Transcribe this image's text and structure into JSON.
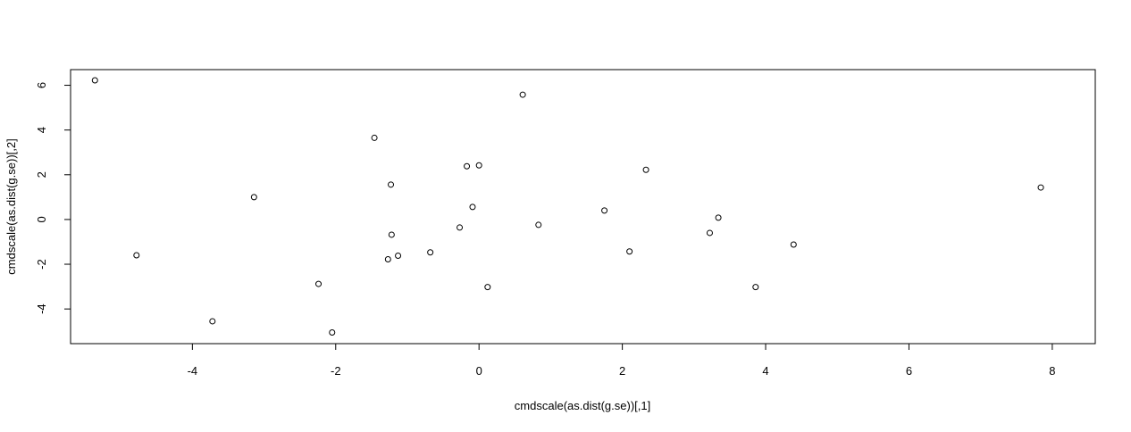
{
  "chart_data": {
    "type": "scatter",
    "title": "",
    "xlabel": "cmdscale(as.dist(g.se))[,1]",
    "ylabel": "cmdscale(as.dist(g.se))[,2]",
    "xlim": [
      -5.7,
      8.6
    ],
    "ylim": [
      -5.55,
      6.7
    ],
    "xticks": [
      -4,
      -2,
      0,
      2,
      4,
      6,
      8
    ],
    "yticks": [
      -4,
      -2,
      0,
      2,
      4,
      6
    ],
    "xtick_labels": [
      "-4",
      "-2",
      "0",
      "2",
      "4",
      "6",
      "8"
    ],
    "ytick_labels": [
      "-4",
      "-2",
      "0",
      "2",
      "4",
      "6"
    ],
    "grid": false,
    "legend": "none",
    "point_color": "#000000",
    "points": [
      {
        "x": -5.36,
        "y": 6.22
      },
      {
        "x": -4.78,
        "y": -1.6
      },
      {
        "x": -3.72,
        "y": -4.55
      },
      {
        "x": -3.14,
        "y": 1.0
      },
      {
        "x": -2.24,
        "y": -2.88
      },
      {
        "x": -2.05,
        "y": -5.05
      },
      {
        "x": -1.46,
        "y": 3.65
      },
      {
        "x": -1.23,
        "y": 1.56
      },
      {
        "x": -1.22,
        "y": -0.68
      },
      {
        "x": -1.27,
        "y": -1.78
      },
      {
        "x": -1.13,
        "y": -1.62
      },
      {
        "x": -0.68,
        "y": -1.47
      },
      {
        "x": -0.27,
        "y": -0.36
      },
      {
        "x": -0.17,
        "y": 2.38
      },
      {
        "x": -0.09,
        "y": 0.56
      },
      {
        "x": 0.0,
        "y": 2.42
      },
      {
        "x": 0.12,
        "y": -3.02
      },
      {
        "x": 0.61,
        "y": 5.58
      },
      {
        "x": 0.83,
        "y": -0.24
      },
      {
        "x": 1.75,
        "y": 0.4
      },
      {
        "x": 2.1,
        "y": -1.43
      },
      {
        "x": 2.33,
        "y": 2.22
      },
      {
        "x": 3.22,
        "y": -0.6
      },
      {
        "x": 3.34,
        "y": 0.08
      },
      {
        "x": 3.86,
        "y": -3.02
      },
      {
        "x": 4.39,
        "y": -1.12
      },
      {
        "x": 7.84,
        "y": 1.43
      }
    ]
  }
}
